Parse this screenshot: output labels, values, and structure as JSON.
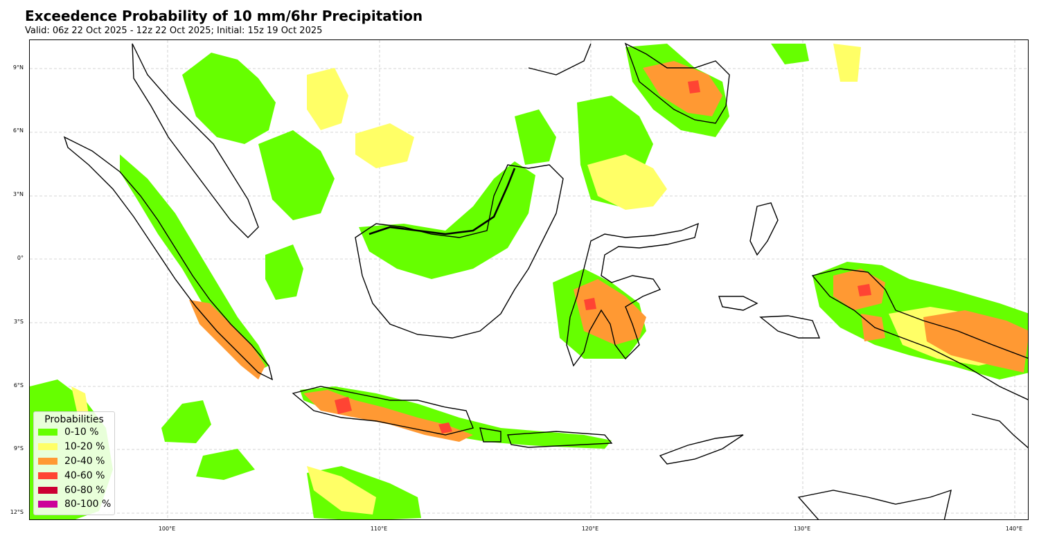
{
  "title": "Exceedence Probability of 10 mm/6hr Precipitation",
  "subtitle": "Valid: 06z 22 Oct 2025 - 12z 22 Oct 2025; Initial: 15z 19 Oct 2025",
  "map": {
    "lat_labels": [
      "9°N",
      "6°N",
      "3°N",
      "0°",
      "3°S",
      "6°S",
      "9°S",
      "12°S"
    ],
    "lon_labels": [
      "100°E",
      "110°E",
      "120°E",
      "130°E",
      "140°E"
    ],
    "coastline_color": "#000000",
    "gridline_color": "#c8c8c8"
  },
  "legend": {
    "title": "Probabilities",
    "items": [
      {
        "label": "0-10 %",
        "color": "#66ff00"
      },
      {
        "label": "10-20 %",
        "color": "#ffff66"
      },
      {
        "label": "20-40 %",
        "color": "#ff9933"
      },
      {
        "label": "40-60 %",
        "color": "#ff4433"
      },
      {
        "label": "60-80 %",
        "color": "#cc0033"
      },
      {
        "label": "80-100 %",
        "color": "#cc0099"
      }
    ]
  }
}
